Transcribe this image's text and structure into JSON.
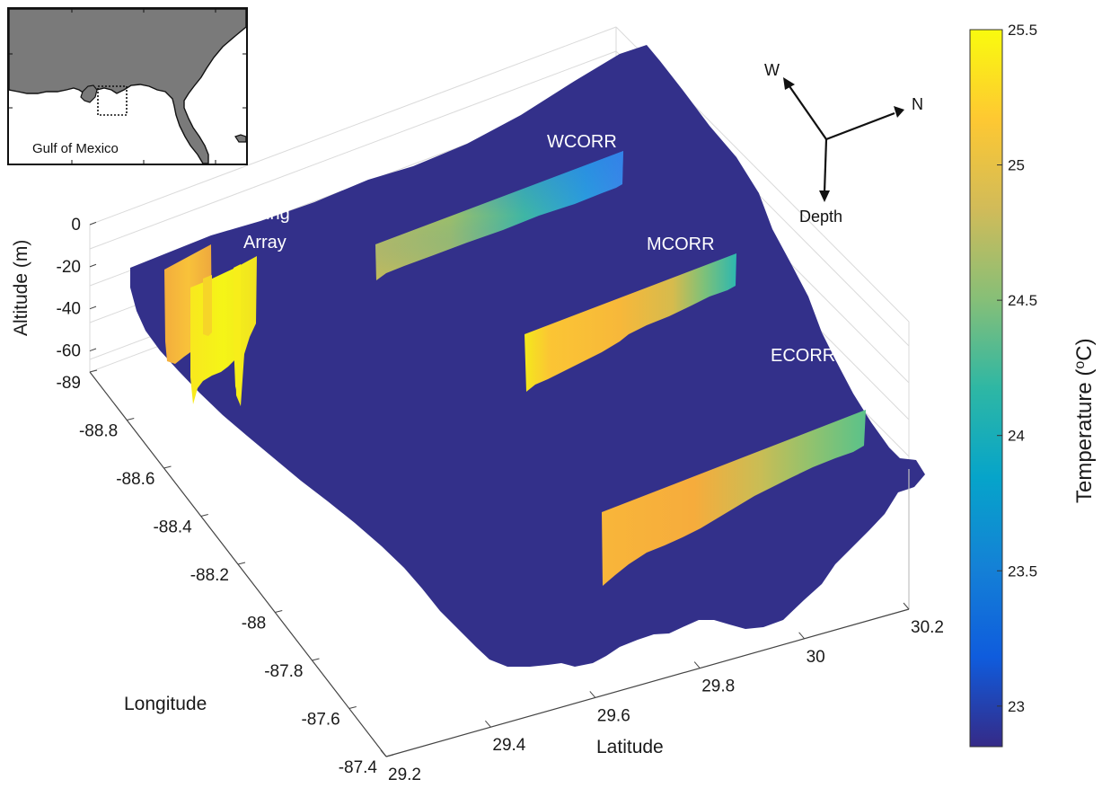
{
  "chart_data": {
    "type": "3d-surface",
    "xlabel": "Latitude",
    "ylabel": "Longitude",
    "zlabel": "Altitude (m)",
    "xlim": [
      29.2,
      30.2
    ],
    "ylim": [
      -89,
      -87.4
    ],
    "zlim": [
      -70,
      0
    ],
    "x_ticks": [
      "29.2",
      "29.4",
      "29.6",
      "29.8",
      "30",
      "30.2"
    ],
    "y_ticks": [
      "-89",
      "-88.8",
      "-88.6",
      "-88.4",
      "-88.2",
      "-88",
      "-87.8",
      "-87.6",
      "-87.4"
    ],
    "z_ticks": [
      "0",
      "-20",
      "-40",
      "-60"
    ],
    "grid": true,
    "colorbar": {
      "label": "Temperature (°C)",
      "label_main": "Temperature (",
      "label_sup": "o",
      "label_end": "C)",
      "range": [
        22.85,
        25.5
      ],
      "ticks": [
        "23",
        "23.5",
        "24",
        "24.5",
        "25",
        "25.5"
      ],
      "tick_values": [
        23,
        23.5,
        24,
        24.5,
        25,
        25.5
      ],
      "colors": [
        "#352a87",
        "#0f5cdd",
        "#1481d6",
        "#06a4ca",
        "#2eb7a4",
        "#87bf77",
        "#d1bb59",
        "#fec832",
        "#f9fb0e"
      ]
    },
    "seabed_color": "#33308a",
    "transects": [
      {
        "name": "Mixing Array",
        "label_lines": [
          "Mixing",
          "Array"
        ],
        "temperature_range": [
          24.9,
          25.5
        ]
      },
      {
        "name": "WCORR",
        "label_lines": [
          "WCORR"
        ],
        "temperature_range": [
          23.2,
          24.8
        ]
      },
      {
        "name": "MCORR",
        "label_lines": [
          "MCORR"
        ],
        "temperature_range": [
          24.0,
          25.4
        ]
      },
      {
        "name": "ECORR",
        "label_lines": [
          "ECORR"
        ],
        "temperature_range": [
          24.2,
          25.1
        ]
      }
    ],
    "compass": {
      "labels": [
        "W",
        "N",
        "Depth"
      ]
    }
  },
  "inset_map": {
    "label": "Gulf of Mexico",
    "land_color": "#7a7a7a",
    "water_color": "#ffffff"
  }
}
